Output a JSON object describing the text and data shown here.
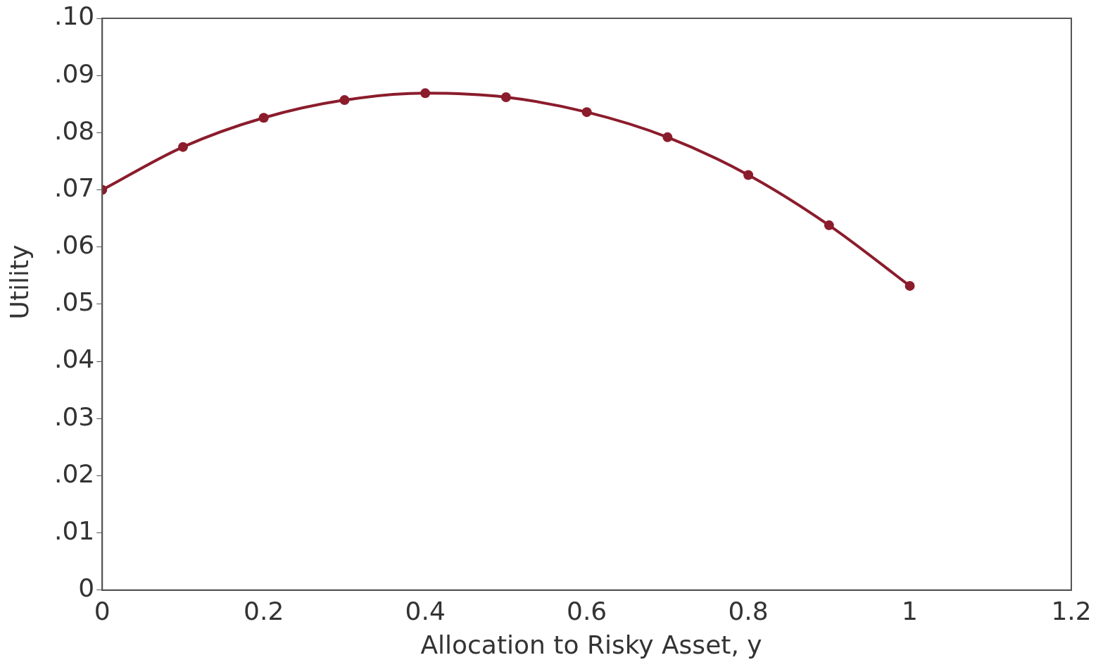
{
  "chart_data": {
    "type": "line",
    "xlabel": "Allocation to Risky Asset, y",
    "ylabel": "Utility",
    "x": [
      0,
      0.1,
      0.2,
      0.3,
      0.4,
      0.5,
      0.6,
      0.7,
      0.8,
      0.9,
      1
    ],
    "series": [
      {
        "color": "#8b1c2c",
        "values": [
          0.07,
          0.0775,
          0.0826,
          0.0857,
          0.0869,
          0.0862,
          0.0836,
          0.0792,
          0.0726,
          0.0638,
          0.0532
        ]
      }
    ],
    "xlim": [
      0,
      1.2
    ],
    "xticks": [
      0,
      0.2,
      0.4,
      0.6,
      0.8,
      1,
      1.2
    ],
    "ylim": [
      0,
      0.1
    ],
    "yticks": [
      {
        "value": 0,
        "label": "0"
      },
      {
        "value": 0.01,
        "label": ".01"
      },
      {
        "value": 0.02,
        "label": ".02"
      },
      {
        "value": 0.03,
        "label": ".03"
      },
      {
        "value": 0.04,
        "label": ".04"
      },
      {
        "value": 0.05,
        "label": ".05"
      },
      {
        "value": 0.06,
        "label": ".06"
      },
      {
        "value": 0.07,
        "label": ".07"
      },
      {
        "value": 0.08,
        "label": ".08"
      },
      {
        "value": 0.09,
        "label": ".09"
      },
      {
        "value": 0.1,
        "label": ".10"
      }
    ],
    "grid": false,
    "legend": false,
    "marker": "circle",
    "line_style": "solid"
  }
}
